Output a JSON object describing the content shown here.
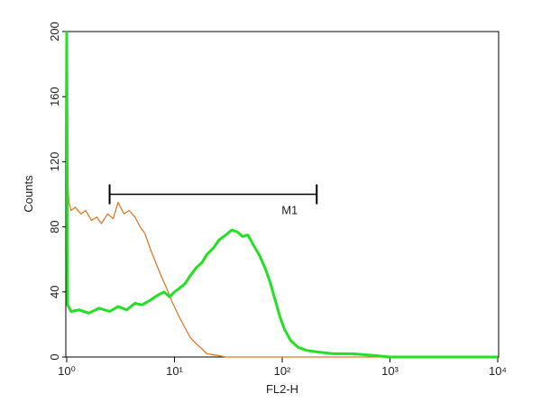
{
  "chart_data": {
    "type": "line",
    "xlabel": "FL2-H",
    "ylabel": "Counts",
    "xscale": "log",
    "xlim": [
      1,
      10000
    ],
    "xticks": [
      {
        "value": 1,
        "label": "10⁰"
      },
      {
        "value": 10,
        "label": "10¹"
      },
      {
        "value": 100,
        "label": "10²"
      },
      {
        "value": 1000,
        "label": "10³"
      },
      {
        "value": 10000,
        "label": "10⁴"
      }
    ],
    "ylim": [
      0,
      200
    ],
    "yticks": [
      0,
      40,
      80,
      120,
      160,
      200
    ],
    "series": [
      {
        "color": "#e07a2a",
        "width": 1.3,
        "x": [
          1,
          1.05,
          1.1,
          1.2,
          1.35,
          1.5,
          1.7,
          1.9,
          2.1,
          2.4,
          2.7,
          3,
          3.4,
          3.8,
          4.3,
          4.8,
          5.3,
          6,
          6.7,
          7.5,
          8.5,
          9.5,
          11,
          12.5,
          14,
          16,
          18,
          20,
          25,
          30,
          50,
          100,
          1000,
          10000
        ],
        "values": [
          115,
          95,
          90,
          92,
          88,
          90,
          84,
          86,
          82,
          88,
          85,
          95,
          88,
          90,
          86,
          80,
          76,
          66,
          58,
          50,
          42,
          34,
          25,
          18,
          12,
          8,
          5,
          2,
          1,
          0,
          0,
          0,
          0,
          0
        ]
      },
      {
        "color": "#22e022",
        "width": 3,
        "x": [
          1,
          1.02,
          1.1,
          1.3,
          1.6,
          2,
          2.5,
          3,
          3.6,
          4.3,
          5,
          6,
          7,
          8,
          9,
          10,
          11,
          12.5,
          14,
          16,
          18,
          20,
          23,
          26,
          30,
          34,
          38,
          43,
          48,
          55,
          62,
          70,
          78,
          86,
          95,
          105,
          120,
          140,
          170,
          220,
          300,
          450,
          700,
          1000,
          3000,
          10000
        ],
        "values": [
          200,
          32,
          28,
          29,
          27,
          30,
          28,
          31,
          29,
          33,
          32,
          35,
          38,
          40,
          37,
          40,
          42,
          45,
          50,
          55,
          58,
          63,
          67,
          72,
          75,
          78,
          77,
          74,
          75,
          68,
          62,
          54,
          45,
          35,
          25,
          17,
          10,
          6,
          4,
          3,
          2,
          2,
          1,
          0,
          0,
          0
        ]
      }
    ],
    "marker": {
      "label": "M1",
      "start": 2.5,
      "end": 209,
      "level": 100
    }
  }
}
